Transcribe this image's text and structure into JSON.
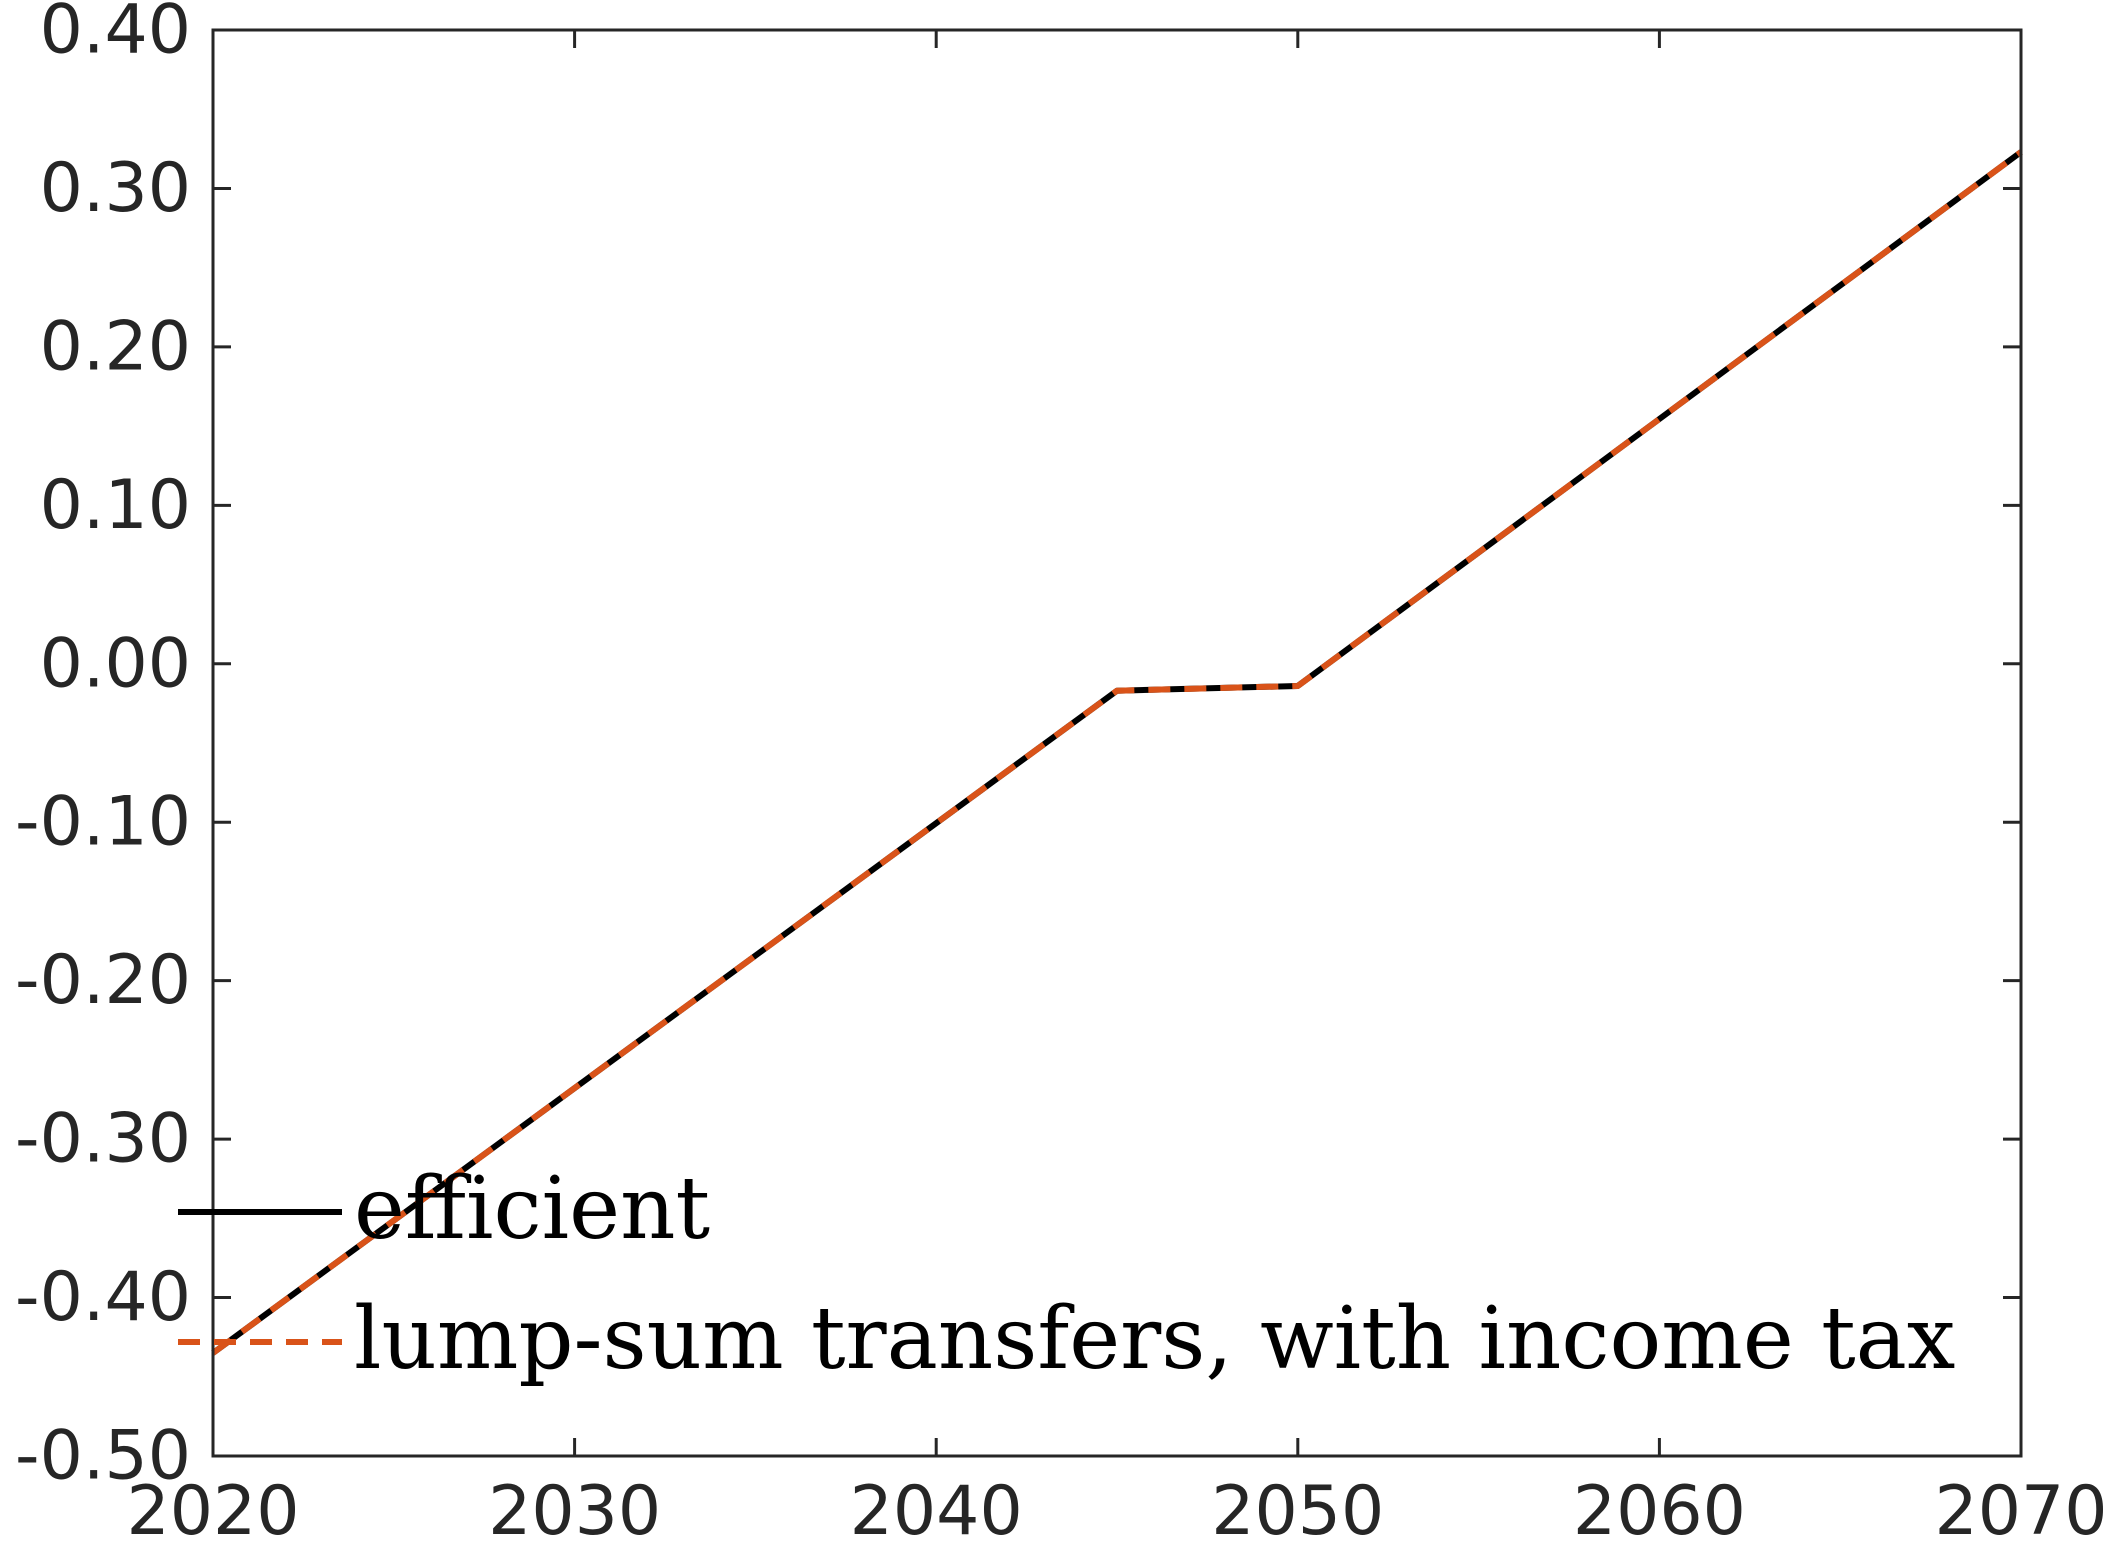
{
  "chart_data": {
    "type": "line",
    "title": "",
    "xlabel": "",
    "ylabel": "",
    "xlim": [
      2020,
      2070
    ],
    "ylim": [
      -0.5,
      0.4
    ],
    "xticks": [
      2020,
      2030,
      2040,
      2050,
      2060,
      2070
    ],
    "xtick_labels": [
      "2020",
      "2030",
      "2040",
      "2050",
      "2060",
      "2070"
    ],
    "yticks": [
      0.4,
      0.3,
      0.2,
      0.1,
      0.0,
      -0.1,
      -0.2,
      -0.3,
      -0.4,
      -0.5
    ],
    "ytick_labels": [
      "0.40",
      "0.30",
      "0.20",
      "0.10",
      "0.00",
      "-0.10",
      "-0.20",
      "-0.30",
      "-0.40",
      "-0.50"
    ],
    "grid": false,
    "legend_position": "bottom-left",
    "series": [
      {
        "name": "efficient",
        "color": "#000000",
        "style": "solid",
        "x": [
          2020,
          2045,
          2050,
          2070
        ],
        "y": [
          -0.435,
          -0.017,
          -0.014,
          0.323
        ]
      },
      {
        "name": "lump-sum transfers, with income tax",
        "color": "#D95319",
        "style": "dashed",
        "x": [
          2020,
          2045,
          2050,
          2070
        ],
        "y": [
          -0.435,
          -0.017,
          -0.014,
          0.323
        ]
      }
    ]
  }
}
